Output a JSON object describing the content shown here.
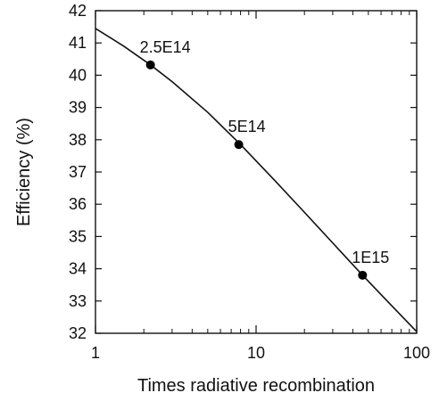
{
  "chart_data": {
    "type": "line",
    "title": "",
    "xlabel": "Times radiative recombination",
    "ylabel": "Efficiency (%)",
    "xscale": "log",
    "xlim": [
      1,
      100
    ],
    "ylim": [
      32,
      42
    ],
    "xticks": [
      1,
      10,
      100
    ],
    "xtick_labels": [
      "1",
      "10",
      "100"
    ],
    "yticks": [
      32,
      33,
      34,
      35,
      36,
      37,
      38,
      39,
      40,
      41,
      42
    ],
    "ytick_labels": [
      "32",
      "33",
      "34",
      "35",
      "36",
      "37",
      "38",
      "39",
      "40",
      "41",
      "42"
    ],
    "grid": false,
    "legend": "none",
    "series": [
      {
        "x": [
          1.0,
          1.5,
          2.2,
          3.0,
          5.0,
          8.0,
          13.0,
          20.0,
          30.0,
          46.0,
          70.0,
          100.0
        ],
        "y": [
          41.45,
          40.9,
          40.32,
          39.8,
          38.85,
          37.85,
          36.75,
          35.75,
          34.8,
          33.8,
          32.85,
          32.05
        ]
      }
    ],
    "points": [
      {
        "x": 2.2,
        "y": 40.32,
        "label": "2.5E14"
      },
      {
        "x": 7.8,
        "y": 37.85,
        "label": "5E14"
      },
      {
        "x": 46.0,
        "y": 33.8,
        "label": "1E15"
      }
    ],
    "colors": {
      "line": "#111111",
      "marker": "#000000",
      "text": "#111111"
    }
  }
}
